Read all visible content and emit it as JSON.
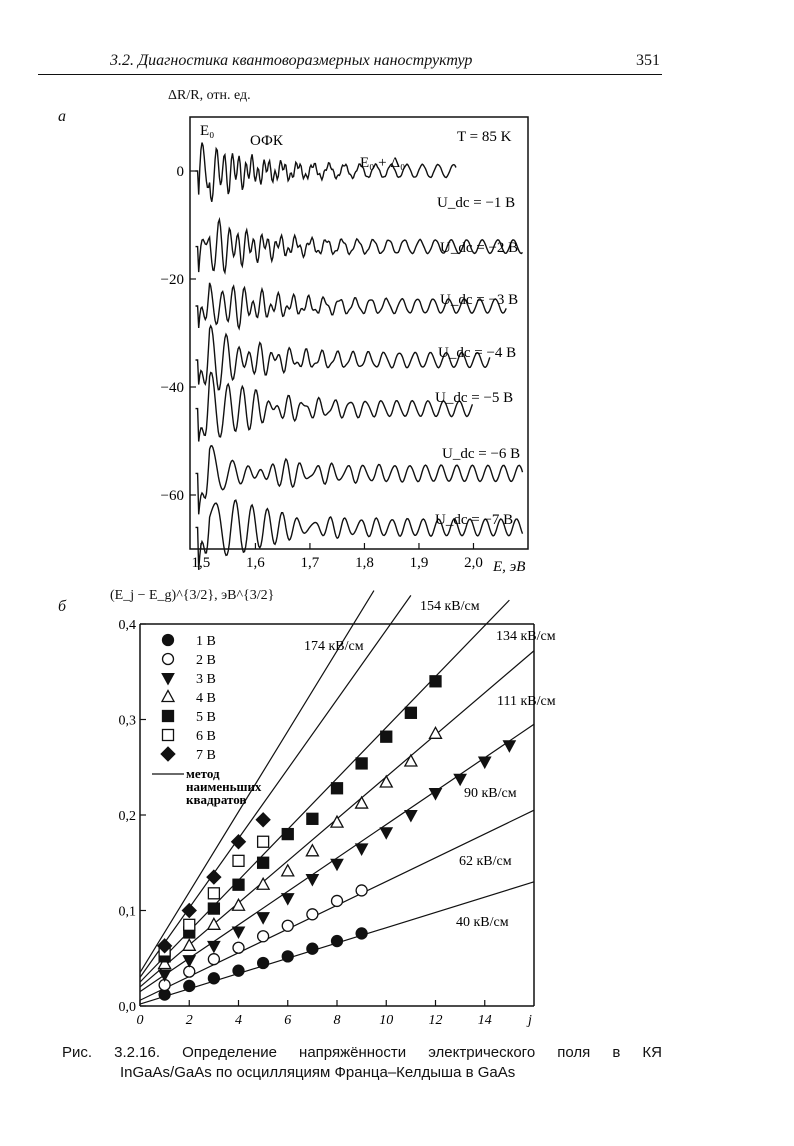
{
  "header": {
    "title": "3.2. Диагностика квантоворазмерных наноструктур",
    "page": "351"
  },
  "panel_a": {
    "letter": "а",
    "ylabel": "ΔR/R, отн. ед.",
    "top_labels": [
      "E₀",
      "ОФК",
      "E₀ + Δ₀",
      "T = 85 K"
    ],
    "curve_labels": [
      "U_dc = −1 B",
      "U_dc = −2 B",
      "U_dc = −3 B",
      "U_dc = −4 B",
      "U_dc = −5 B",
      "U_dc = −6 B",
      "U_dc = −7 B"
    ],
    "xlabel": "E, эВ",
    "xticks": [
      "1,5",
      "1,6",
      "1,7",
      "1,8",
      "1,9",
      "2,0"
    ],
    "yticks": [
      "0",
      "−20",
      "−40",
      "−60"
    ]
  },
  "panel_b": {
    "letter": "б",
    "ylabel": "(E_j − E_g)^{3/2}, эВ^{3/2}",
    "xlabel": "j",
    "xticks": [
      "0",
      "2",
      "4",
      "6",
      "8",
      "10",
      "12",
      "14"
    ],
    "yticks": [
      "0,0",
      "0,1",
      "0,2",
      "0,3",
      "0,4"
    ],
    "legend": [
      "1 B",
      "2 B",
      "3 B",
      "4 B",
      "5 B",
      "6 B",
      "7 B"
    ],
    "legend_line": [
      "метод",
      "наименьших",
      "квадратов"
    ],
    "line_labels": [
      "174 кВ/см",
      "154 кВ/см",
      "134 кВ/см",
      "111 кВ/см",
      "90 кВ/см",
      "62 кВ/см",
      "40 кВ/см"
    ]
  },
  "chart_data": [
    {
      "type": "line",
      "title": "",
      "xlabel": "E, эВ",
      "ylabel": "ΔR/R, отн. ед.",
      "xlim": [
        1.48,
        2.1
      ],
      "ylim": [
        -70,
        10
      ],
      "grid": false,
      "series": [
        {
          "name": "U_dc = −1 B",
          "offset": 0
        },
        {
          "name": "U_dc = −2 B",
          "offset": -14
        },
        {
          "name": "U_dc = −3 B",
          "offset": -25
        },
        {
          "name": "U_dc = −4 B",
          "offset": -35
        },
        {
          "name": "U_dc = −5 B",
          "offset": -44
        },
        {
          "name": "U_dc = −6 B",
          "offset": -56
        },
        {
          "name": "U_dc = −7 B",
          "offset": -66
        }
      ]
    },
    {
      "type": "scatter",
      "title": "",
      "xlabel": "j",
      "ylabel": "(E_j − E_g)^{3/2}, эВ^{3/2}",
      "xlim": [
        0,
        16
      ],
      "ylim": [
        0,
        0.4
      ],
      "grid": false,
      "series": [
        {
          "name": "1 B",
          "marker": "filled-circle",
          "x": [
            1,
            2,
            3,
            4,
            5,
            6,
            7,
            8,
            9
          ],
          "y": [
            0.012,
            0.021,
            0.029,
            0.037,
            0.045,
            0.052,
            0.06,
            0.068,
            0.076
          ]
        },
        {
          "name": "2 B",
          "marker": "open-circle",
          "x": [
            1,
            2,
            3,
            4,
            5,
            6,
            7,
            8,
            9
          ],
          "y": [
            0.022,
            0.036,
            0.049,
            0.061,
            0.073,
            0.084,
            0.096,
            0.11,
            0.121
          ]
        },
        {
          "name": "3 B",
          "marker": "filled-triangle-down",
          "x": [
            1,
            2,
            3,
            4,
            5,
            6,
            7,
            8,
            9,
            10,
            11,
            12,
            13,
            14,
            15
          ],
          "y": [
            0.033,
            0.048,
            0.063,
            0.078,
            0.093,
            0.113,
            0.133,
            0.149,
            0.165,
            0.182,
            0.2,
            0.223,
            0.238,
            0.256,
            0.273
          ]
        },
        {
          "name": "4 B",
          "marker": "open-triangle-up",
          "x": [
            1,
            2,
            3,
            4,
            5,
            6,
            7,
            8,
            9,
            10,
            11,
            12
          ],
          "y": [
            0.044,
            0.063,
            0.085,
            0.105,
            0.127,
            0.141,
            0.162,
            0.192,
            0.212,
            0.234,
            0.256,
            0.285
          ]
        },
        {
          "name": "5 B",
          "marker": "filled-square",
          "x": [
            1,
            2,
            3,
            4,
            5,
            6,
            7,
            8,
            9,
            10,
            11,
            12
          ],
          "y": [
            0.052,
            0.077,
            0.102,
            0.127,
            0.15,
            0.18,
            0.196,
            0.228,
            0.254,
            0.282,
            0.307,
            0.34
          ]
        },
        {
          "name": "6 B",
          "marker": "open-square",
          "x": [
            1,
            2,
            3,
            4,
            5
          ],
          "y": [
            0.058,
            0.085,
            0.118,
            0.152,
            0.172
          ]
        },
        {
          "name": "7 B",
          "marker": "filled-diamond",
          "x": [
            1,
            2,
            3,
            4,
            5
          ],
          "y": [
            0.063,
            0.1,
            0.135,
            0.172,
            0.195
          ]
        }
      ],
      "fit_lines": [
        {
          "label": "40 кВ/см",
          "x": [
            0,
            16
          ],
          "y": [
            0.002,
            0.13
          ]
        },
        {
          "label": "62 кВ/см",
          "x": [
            0,
            16
          ],
          "y": [
            0.006,
            0.205
          ]
        },
        {
          "label": "90 кВ/см",
          "x": [
            0,
            16
          ],
          "y": [
            0.015,
            0.295
          ]
        },
        {
          "label": "111 кВ/см",
          "x": [
            0,
            16
          ],
          "y": [
            0.02,
            0.372
          ]
        },
        {
          "label": "134 кВ/см",
          "x": [
            0,
            15
          ],
          "y": [
            0.025,
            0.425
          ]
        },
        {
          "label": "154 кВ/см",
          "x": [
            0,
            11
          ],
          "y": [
            0.03,
            0.43
          ]
        },
        {
          "label": "174 кВ/см",
          "x": [
            0,
            9.5
          ],
          "y": [
            0.035,
            0.435
          ]
        }
      ]
    }
  ],
  "caption": {
    "line1": "Рис. 3.2.16. Определение напряжённости электрического поля в КЯ",
    "line2": "InGaAs/GaAs по осцилляциям Франца–Келдыша в GaAs"
  }
}
